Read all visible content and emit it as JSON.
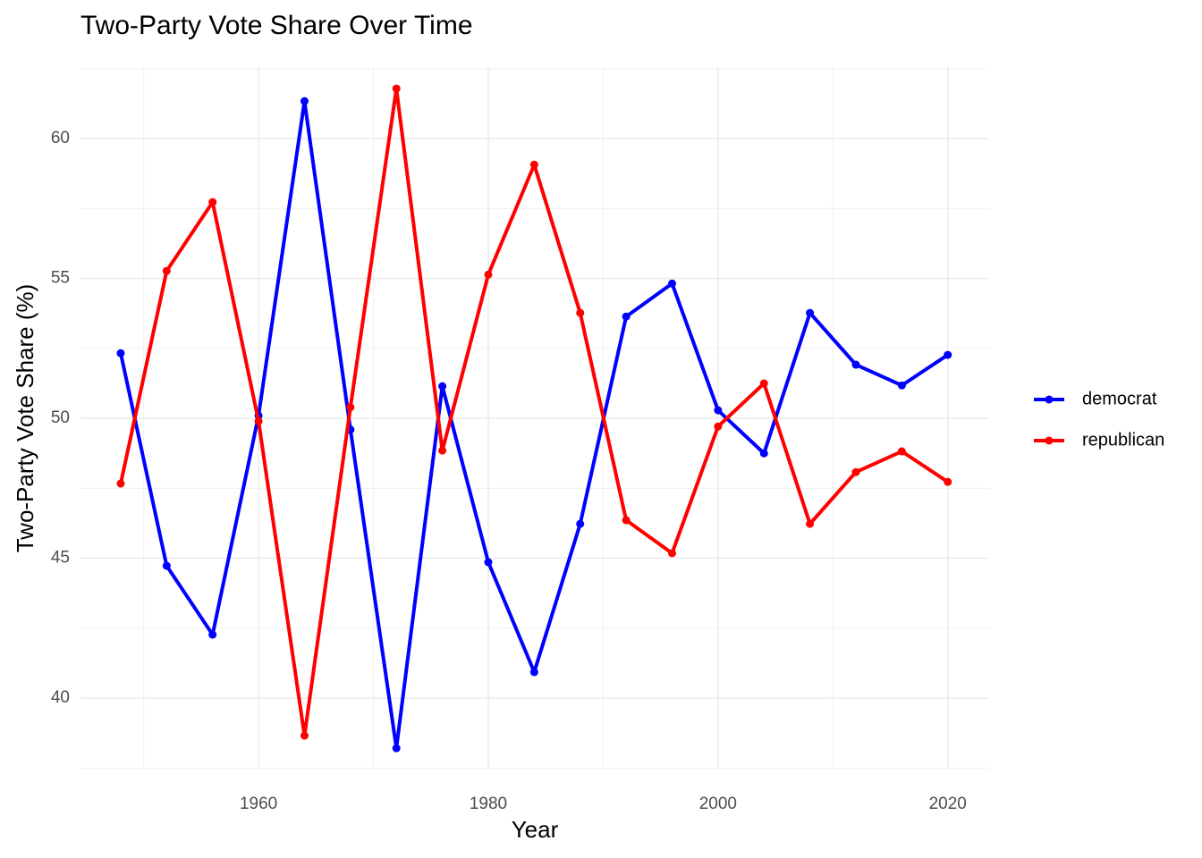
{
  "chart_data": {
    "type": "line",
    "title": "Two-Party Vote Share Over Time",
    "x_label": "Year",
    "y_label": "Two-Party Vote Share (%)",
    "x": [
      1948,
      1952,
      1956,
      1960,
      1964,
      1968,
      1972,
      1976,
      1980,
      1984,
      1988,
      1992,
      1996,
      2000,
      2004,
      2008,
      2012,
      2016,
      2020
    ],
    "series": [
      {
        "name": "democrat",
        "color": "#0000ff",
        "values": [
          52.33,
          44.73,
          42.27,
          50.1,
          61.34,
          49.6,
          38.21,
          51.15,
          44.86,
          40.93,
          46.23,
          53.64,
          54.82,
          50.29,
          48.75,
          53.77,
          51.92,
          51.18,
          52.27
        ]
      },
      {
        "name": "republican",
        "color": "#ff0000",
        "values": [
          47.67,
          55.27,
          57.73,
          49.9,
          38.66,
          50.4,
          61.79,
          48.85,
          55.14,
          59.07,
          53.77,
          46.36,
          45.18,
          49.71,
          51.25,
          46.23,
          48.08,
          48.82,
          47.73
        ]
      }
    ],
    "xlim": [
      1944.5,
      2023.6
    ],
    "xticks": [
      1960,
      1980,
      2000,
      2020
    ],
    "ylim": [
      37.48,
      62.56
    ],
    "yticks": [
      40,
      45,
      50,
      55,
      60
    ],
    "grid": true,
    "legend": "right"
  }
}
